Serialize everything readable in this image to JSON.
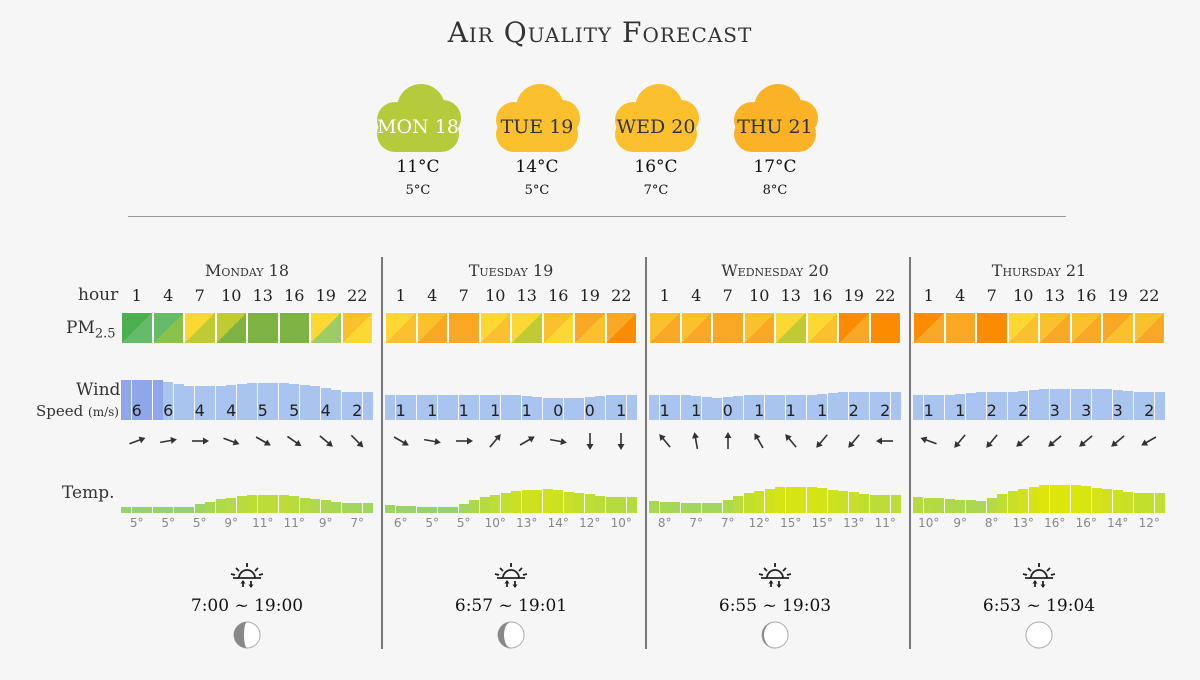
{
  "title": "Air Quality Forecast",
  "summary": [
    {
      "day": "MON 18",
      "high": "11°C",
      "low": "5°C",
      "color": "#b6cb3b",
      "text_color": "#ffffff"
    },
    {
      "day": "TUE 19",
      "high": "14°C",
      "low": "5°C",
      "color": "#fbc02d",
      "text_color": "#333333"
    },
    {
      "day": "WED 20",
      "high": "16°C",
      "low": "7°C",
      "color": "#fbc02d",
      "text_color": "#333333"
    },
    {
      "day": "THU 21",
      "high": "17°C",
      "low": "8°C",
      "color": "#fab227",
      "text_color": "#333333"
    }
  ],
  "row_labels": {
    "hour": "hour",
    "pm": "PM",
    "pm_sub": "2.5",
    "wind1": "Wind",
    "wind2": "Speed",
    "wind_unit": "(m/s)",
    "temp": "Temp."
  },
  "hours": [
    "1",
    "4",
    "7",
    "10",
    "13",
    "16",
    "19",
    "22"
  ],
  "days": [
    {
      "name": "Monday 18",
      "pm": [
        [
          "#4caf50",
          "#66bb6a"
        ],
        [
          "#66bb6a",
          "#8bc34a"
        ],
        [
          "#fdd835",
          "#c0ca33"
        ],
        [
          "#c0ca33",
          "#7cb342"
        ],
        [
          "#7cb342",
          "#7cb342"
        ],
        [
          "#7cb342",
          "#7cb342"
        ],
        [
          "#fdd835",
          "#9ccc65"
        ],
        [
          "#fbc02d",
          "#fdd835"
        ]
      ],
      "wind": [
        6,
        6,
        4,
        4,
        5,
        5,
        4,
        2
      ],
      "wind_dirs": [
        70,
        80,
        90,
        110,
        120,
        125,
        130,
        135
      ],
      "temps": [
        "5°",
        "5°",
        "5°",
        "9°",
        "11°",
        "11°",
        "9°",
        "7°"
      ],
      "sun": "7:00 ~ 19:00",
      "moon_phase": 0.25
    },
    {
      "name": "Tuesday 19",
      "pm": [
        [
          "#fdd835",
          "#fbc02d"
        ],
        [
          "#fbc02d",
          "#f9a825"
        ],
        [
          "#f9a825",
          "#f9a825"
        ],
        [
          "#fdd835",
          "#fbc02d"
        ],
        [
          "#fdd835",
          "#c0ca33"
        ],
        [
          "#fbc02d",
          "#fdd835"
        ],
        [
          "#f9a825",
          "#fbc02d"
        ],
        [
          "#f9a825",
          "#fb8c00"
        ]
      ],
      "wind": [
        1,
        1,
        1,
        1,
        1,
        0,
        0,
        1
      ],
      "wind_dirs": [
        120,
        100,
        90,
        40,
        60,
        100,
        180,
        180
      ],
      "temps": [
        "6°",
        "5°",
        "5°",
        "10°",
        "13°",
        "14°",
        "12°",
        "10°"
      ],
      "sun": "6:57 ~ 19:01",
      "moon_phase": 0.15
    },
    {
      "name": "Wednesday 20",
      "pm": [
        [
          "#fbc02d",
          "#f9a825"
        ],
        [
          "#fbc02d",
          "#f9a825"
        ],
        [
          "#f9a825",
          "#f9a825"
        ],
        [
          "#fbc02d",
          "#f9a825"
        ],
        [
          "#fdd835",
          "#c0ca33"
        ],
        [
          "#fdd835",
          "#fbc02d"
        ],
        [
          "#fb8c00",
          "#f9a825"
        ],
        [
          "#fb8c00",
          "#fb8c00"
        ]
      ],
      "wind": [
        1,
        1,
        0,
        1,
        1,
        1,
        2,
        2
      ],
      "wind_dirs": [
        320,
        350,
        360,
        330,
        320,
        220,
        220,
        270
      ],
      "temps": [
        "8°",
        "7°",
        "7°",
        "12°",
        "15°",
        "15°",
        "13°",
        "11°"
      ],
      "sun": "6:55 ~ 19:03",
      "moon_phase": 0.05
    },
    {
      "name": "Thursday 21",
      "pm": [
        [
          "#fb8c00",
          "#f9a825"
        ],
        [
          "#f9a825",
          "#f9a825"
        ],
        [
          "#fb8c00",
          "#fb8c00"
        ],
        [
          "#fdd835",
          "#fbc02d"
        ],
        [
          "#fbc02d",
          "#f9a825"
        ],
        [
          "#fbc02d",
          "#f9a825"
        ],
        [
          "#f9a825",
          "#fbc02d"
        ],
        [
          "#fbc02d",
          "#f9a825"
        ]
      ],
      "wind": [
        1,
        1,
        2,
        2,
        3,
        3,
        3,
        2
      ],
      "wind_dirs": [
        290,
        220,
        220,
        230,
        230,
        230,
        230,
        240
      ],
      "temps": [
        "10°",
        "9°",
        "8°",
        "13°",
        "16°",
        "16°",
        "14°",
        "12°"
      ],
      "sun": "6:53 ~ 19:04",
      "moon_phase": 0.0
    }
  ]
}
